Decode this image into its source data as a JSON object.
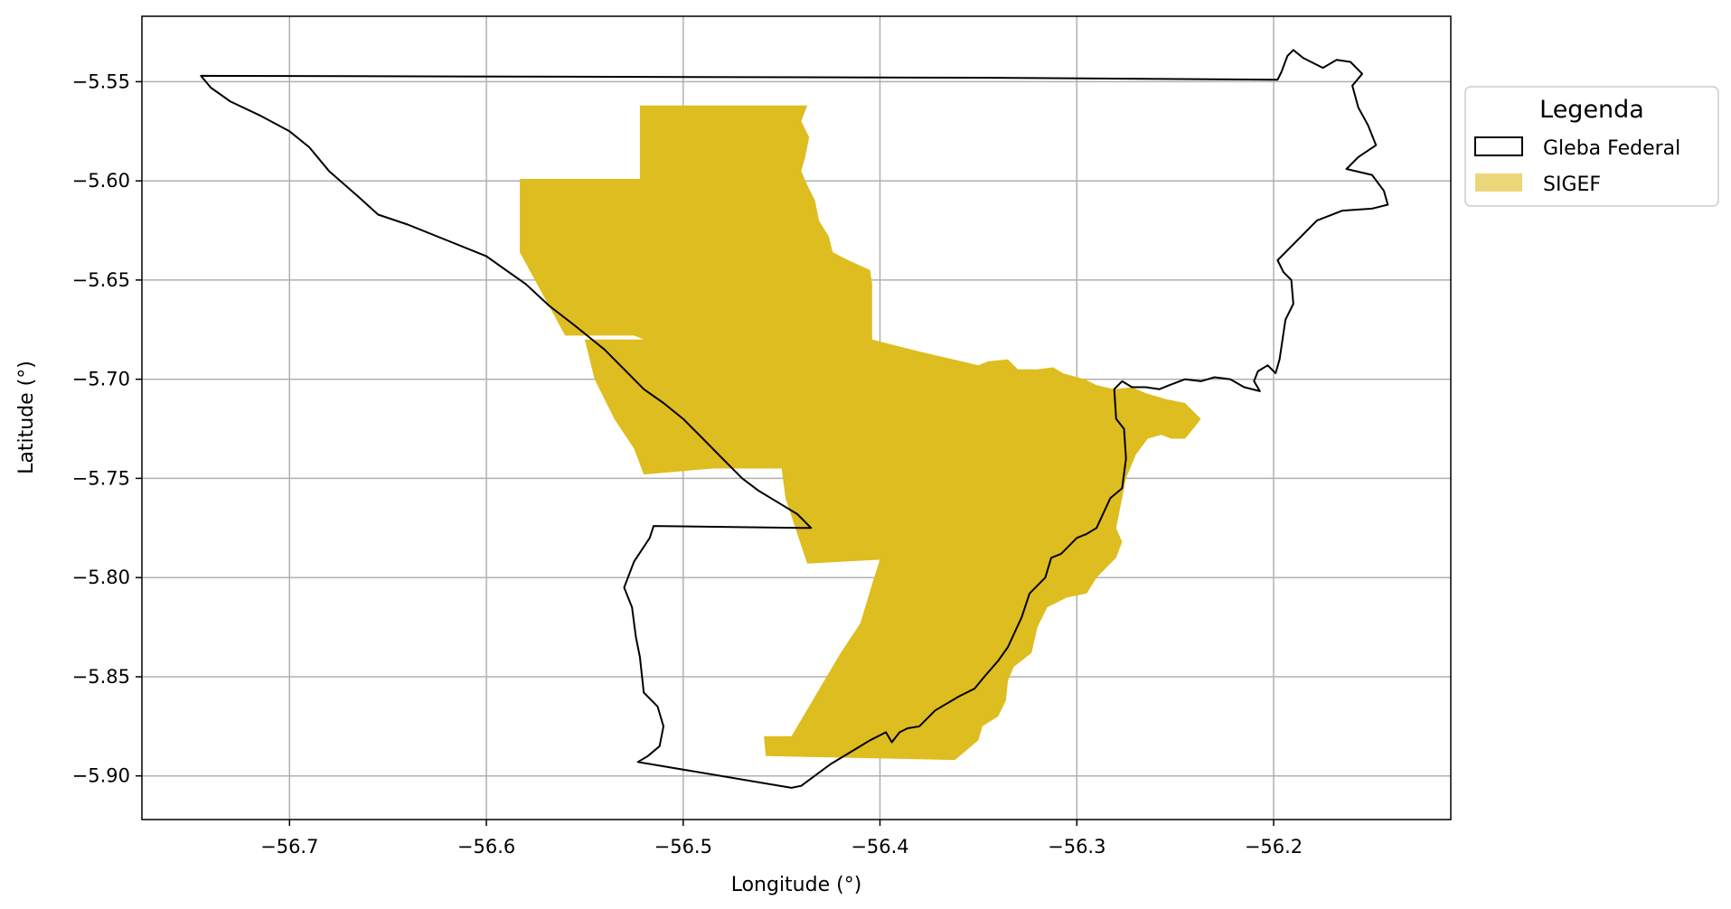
{
  "chart_data": {
    "type": "map",
    "xlabel": "Longitude (°)",
    "ylabel": "Latitude (°)",
    "xlim": [
      -56.775,
      -56.11
    ],
    "ylim": [
      -5.922,
      -5.517
    ],
    "x_ticks": [
      -56.7,
      -56.6,
      -56.5,
      -56.4,
      -56.3,
      -56.2
    ],
    "x_tick_labels": [
      "−56.7",
      "−56.6",
      "−56.5",
      "−56.4",
      "−56.3",
      "−56.2"
    ],
    "y_ticks": [
      -5.55,
      -5.6,
      -5.65,
      -5.7,
      -5.75,
      -5.8,
      -5.85,
      -5.9
    ],
    "y_tick_labels": [
      "−5.55",
      "−5.60",
      "−5.65",
      "−5.70",
      "−5.75",
      "−5.80",
      "−5.85",
      "−5.90"
    ],
    "grid": true,
    "legend": {
      "title": "Legenda",
      "placement": "upper-right-outside",
      "entries": [
        {
          "label": "Gleba Federal",
          "style": "outline",
          "color": "#000000"
        },
        {
          "label": "SIGEF",
          "style": "fill",
          "color": "#ddbd1f"
        }
      ]
    },
    "layers": [
      {
        "name": "Gleba Federal",
        "color": "#000000",
        "polygons": [
          [
            [
              -56.745,
              -5.547
            ],
            [
              -56.35,
              -5.548
            ],
            [
              -56.198,
              -5.549
            ],
            [
              -56.196,
              -5.545
            ],
            [
              -56.193,
              -5.537
            ],
            [
              -56.19,
              -5.534
            ],
            [
              -56.185,
              -5.538
            ],
            [
              -56.175,
              -5.543
            ],
            [
              -56.168,
              -5.539
            ],
            [
              -56.161,
              -5.54
            ],
            [
              -56.155,
              -5.546
            ],
            [
              -56.16,
              -5.552
            ],
            [
              -56.157,
              -5.563
            ],
            [
              -56.152,
              -5.572
            ],
            [
              -56.148,
              -5.582
            ],
            [
              -56.157,
              -5.588
            ],
            [
              -56.163,
              -5.594
            ],
            [
              -56.15,
              -5.597
            ],
            [
              -56.144,
              -5.605
            ],
            [
              -56.142,
              -5.612
            ],
            [
              -56.15,
              -5.614
            ],
            [
              -56.165,
              -5.615
            ],
            [
              -56.178,
              -5.62
            ],
            [
              -56.19,
              -5.632
            ],
            [
              -56.198,
              -5.64
            ],
            [
              -56.195,
              -5.646
            ],
            [
              -56.191,
              -5.65
            ],
            [
              -56.19,
              -5.662
            ],
            [
              -56.194,
              -5.67
            ],
            [
              -56.197,
              -5.69
            ],
            [
              -56.199,
              -5.697
            ],
            [
              -56.203,
              -5.693
            ],
            [
              -56.208,
              -5.696
            ],
            [
              -56.21,
              -5.701
            ],
            [
              -56.207,
              -5.706
            ],
            [
              -56.215,
              -5.704
            ],
            [
              -56.222,
              -5.7
            ],
            [
              -56.23,
              -5.699
            ],
            [
              -56.237,
              -5.701
            ],
            [
              -56.245,
              -5.7
            ],
            [
              -56.253,
              -5.703
            ],
            [
              -56.258,
              -5.705
            ],
            [
              -56.265,
              -5.704
            ],
            [
              -56.272,
              -5.704
            ],
            [
              -56.277,
              -5.701
            ],
            [
              -56.281,
              -5.705
            ],
            [
              -56.28,
              -5.72
            ],
            [
              -56.276,
              -5.725
            ],
            [
              -56.275,
              -5.74
            ],
            [
              -56.277,
              -5.755
            ],
            [
              -56.283,
              -5.76
            ],
            [
              -56.29,
              -5.775
            ],
            [
              -56.295,
              -5.778
            ],
            [
              -56.3,
              -5.78
            ],
            [
              -56.308,
              -5.788
            ],
            [
              -56.313,
              -5.79
            ],
            [
              -56.316,
              -5.8
            ],
            [
              -56.324,
              -5.808
            ],
            [
              -56.328,
              -5.82
            ],
            [
              -56.335,
              -5.835
            ],
            [
              -56.34,
              -5.842
            ],
            [
              -56.347,
              -5.85
            ],
            [
              -56.352,
              -5.856
            ],
            [
              -56.36,
              -5.86
            ],
            [
              -56.372,
              -5.867
            ],
            [
              -56.38,
              -5.875
            ],
            [
              -56.386,
              -5.876
            ],
            [
              -56.39,
              -5.878
            ],
            [
              -56.394,
              -5.883
            ],
            [
              -56.397,
              -5.878
            ],
            [
              -56.405,
              -5.882
            ],
            [
              -56.415,
              -5.888
            ],
            [
              -56.425,
              -5.894
            ],
            [
              -56.44,
              -5.905
            ],
            [
              -56.445,
              -5.906
            ],
            [
              -56.523,
              -5.893
            ],
            [
              -56.518,
              -5.89
            ],
            [
              -56.512,
              -5.885
            ],
            [
              -56.51,
              -5.875
            ],
            [
              -56.513,
              -5.865
            ],
            [
              -56.52,
              -5.858
            ],
            [
              -56.522,
              -5.84
            ],
            [
              -56.524,
              -5.83
            ],
            [
              -56.526,
              -5.815
            ],
            [
              -56.53,
              -5.805
            ],
            [
              -56.525,
              -5.792
            ],
            [
              -56.517,
              -5.78
            ],
            [
              -56.515,
              -5.774
            ],
            [
              -56.44,
              -5.775
            ],
            [
              -56.435,
              -5.775
            ],
            [
              -56.442,
              -5.768
            ],
            [
              -56.452,
              -5.762
            ],
            [
              -56.462,
              -5.756
            ],
            [
              -56.47,
              -5.75
            ],
            [
              -56.48,
              -5.74
            ],
            [
              -56.49,
              -5.73
            ],
            [
              -56.5,
              -5.72
            ],
            [
              -56.51,
              -5.712
            ],
            [
              -56.52,
              -5.705
            ],
            [
              -56.528,
              -5.697
            ],
            [
              -56.54,
              -5.685
            ],
            [
              -56.555,
              -5.673
            ],
            [
              -56.568,
              -5.663
            ],
            [
              -56.58,
              -5.652
            ],
            [
              -56.59,
              -5.645
            ],
            [
              -56.6,
              -5.638
            ],
            [
              -56.62,
              -5.63
            ],
            [
              -56.64,
              -5.622
            ],
            [
              -56.655,
              -5.617
            ],
            [
              -56.665,
              -5.608
            ],
            [
              -56.68,
              -5.595
            ],
            [
              -56.69,
              -5.583
            ],
            [
              -56.7,
              -5.575
            ],
            [
              -56.715,
              -5.567
            ],
            [
              -56.73,
              -5.56
            ],
            [
              -56.74,
              -5.553
            ],
            [
              -56.745,
              -5.547
            ]
          ]
        ]
      },
      {
        "name": "SIGEF",
        "color": "#ddbd1f",
        "polygons": [
          [
            [
              -56.522,
              -5.562
            ],
            [
              -56.437,
              -5.562
            ],
            [
              -56.44,
              -5.57
            ],
            [
              -56.436,
              -5.578
            ],
            [
              -56.438,
              -5.588
            ],
            [
              -56.44,
              -5.595
            ],
            [
              -56.437,
              -5.602
            ],
            [
              -56.433,
              -5.61
            ],
            [
              -56.431,
              -5.62
            ],
            [
              -56.426,
              -5.628
            ],
            [
              -56.424,
              -5.636
            ],
            [
              -56.416,
              -5.64
            ],
            [
              -56.405,
              -5.645
            ],
            [
              -56.404,
              -5.652
            ],
            [
              -56.404,
              -5.665
            ],
            [
              -56.404,
              -5.68
            ],
            [
              -56.38,
              -5.686
            ],
            [
              -56.35,
              -5.693
            ],
            [
              -56.345,
              -5.691
            ],
            [
              -56.335,
              -5.69
            ],
            [
              -56.33,
              -5.695
            ],
            [
              -56.32,
              -5.695
            ],
            [
              -56.312,
              -5.694
            ],
            [
              -56.307,
              -5.697
            ],
            [
              -56.296,
              -5.7
            ],
            [
              -56.29,
              -5.703
            ],
            [
              -56.281,
              -5.705
            ],
            [
              -56.272,
              -5.704
            ],
            [
              -56.265,
              -5.707
            ],
            [
              -56.255,
              -5.71
            ],
            [
              -56.245,
              -5.712
            ],
            [
              -56.237,
              -5.72
            ],
            [
              -56.24,
              -5.724
            ],
            [
              -56.245,
              -5.73
            ],
            [
              -56.252,
              -5.73
            ],
            [
              -56.257,
              -5.728
            ],
            [
              -56.264,
              -5.73
            ],
            [
              -56.27,
              -5.738
            ],
            [
              -56.275,
              -5.75
            ],
            [
              -56.277,
              -5.76
            ],
            [
              -56.28,
              -5.775
            ],
            [
              -56.277,
              -5.782
            ],
            [
              -56.28,
              -5.79
            ],
            [
              -56.29,
              -5.8
            ],
            [
              -56.295,
              -5.808
            ],
            [
              -56.305,
              -5.81
            ],
            [
              -56.315,
              -5.815
            ],
            [
              -56.32,
              -5.825
            ],
            [
              -56.323,
              -5.838
            ],
            [
              -56.332,
              -5.845
            ],
            [
              -56.335,
              -5.852
            ],
            [
              -56.336,
              -5.862
            ],
            [
              -56.34,
              -5.87
            ],
            [
              -56.348,
              -5.875
            ],
            [
              -56.35,
              -5.882
            ],
            [
              -56.362,
              -5.892
            ],
            [
              -56.458,
              -5.89
            ],
            [
              -56.459,
              -5.88
            ],
            [
              -56.445,
              -5.88
            ],
            [
              -56.42,
              -5.838
            ],
            [
              -56.41,
              -5.823
            ],
            [
              -56.403,
              -5.8
            ],
            [
              -56.4,
              -5.791
            ],
            [
              -56.437,
              -5.793
            ],
            [
              -56.448,
              -5.76
            ],
            [
              -56.45,
              -5.745
            ],
            [
              -56.485,
              -5.745
            ],
            [
              -56.52,
              -5.748
            ],
            [
              -56.525,
              -5.735
            ],
            [
              -56.535,
              -5.72
            ],
            [
              -56.545,
              -5.7
            ],
            [
              -56.55,
              -5.68
            ],
            [
              -56.55,
              -5.705
            ],
            [
              -56.55,
              -5.68
            ],
            [
              -56.52,
              -5.68
            ],
            [
              -56.525,
              -5.678
            ],
            [
              -56.56,
              -5.678
            ],
            [
              -56.583,
              -5.636
            ],
            [
              -56.583,
              -5.599
            ],
            [
              -56.522,
              -5.599
            ],
            [
              -56.522,
              -5.562
            ]
          ]
        ]
      }
    ]
  }
}
